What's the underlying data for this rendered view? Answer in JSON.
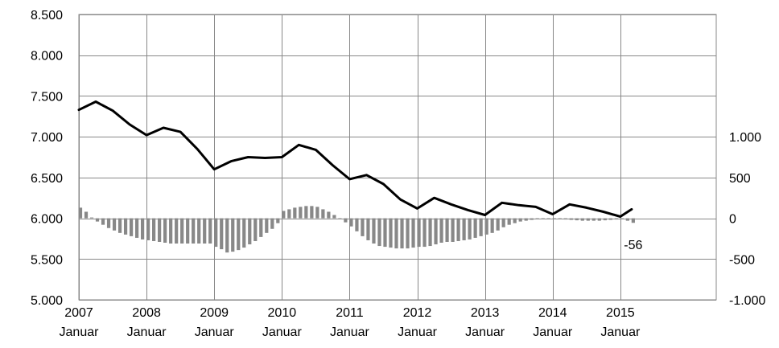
{
  "chart_data": {
    "type": "line",
    "title": "",
    "xlabel": "",
    "ylabel": "",
    "x_tick_labels": [
      {
        "year": "2007",
        "month": "Januar"
      },
      {
        "year": "2008",
        "month": "Januar"
      },
      {
        "year": "2009",
        "month": "Januar"
      },
      {
        "year": "2010",
        "month": "Januar"
      },
      {
        "year": "2011",
        "month": "Januar"
      },
      {
        "year": "2012",
        "month": "Januar"
      },
      {
        "year": "2013",
        "month": "Januar"
      },
      {
        "year": "2014",
        "month": "Januar"
      },
      {
        "year": "2015",
        "month": "Januar"
      }
    ],
    "x_start": "2007-01",
    "x_end": "2016-06",
    "left_axis": {
      "ylim": [
        5000,
        8500
      ],
      "tick_values": [
        5000,
        5500,
        6000,
        6500,
        7000,
        7500,
        8000,
        8500
      ],
      "tick_labels": [
        "5.000",
        "5.500",
        "6.000",
        "6.500",
        "7.000",
        "7.500",
        "8.000",
        "8.500"
      ]
    },
    "right_axis": {
      "ylim": [
        -1000,
        2500
      ],
      "tick_values": [
        -1000,
        -500,
        0,
        500,
        1000
      ],
      "tick_labels": [
        "-1.000",
        "-500",
        "0",
        "500",
        "1.000"
      ]
    },
    "grid": true,
    "line_color": "#000000",
    "bar_color": "#888888",
    "series": [
      {
        "type": "line",
        "axis": "left",
        "x": [
          "2007-01",
          "2007-04",
          "2007-07",
          "2007-10",
          "2008-01",
          "2008-04",
          "2008-07",
          "2008-10",
          "2009-01",
          "2009-04",
          "2009-07",
          "2009-10",
          "2010-01",
          "2010-04",
          "2010-07",
          "2010-10",
          "2011-01",
          "2011-04",
          "2011-07",
          "2011-10",
          "2012-01",
          "2012-04",
          "2012-07",
          "2012-10",
          "2013-01",
          "2013-04",
          "2013-07",
          "2013-10",
          "2014-01",
          "2014-04",
          "2014-07",
          "2014-10",
          "2015-01",
          "2015-03"
        ],
        "values": [
          7330,
          7430,
          7320,
          7150,
          7020,
          7110,
          7060,
          6850,
          6600,
          6700,
          6750,
          6740,
          6750,
          6900,
          6840,
          6650,
          6480,
          6530,
          6420,
          6230,
          6120,
          6250,
          6170,
          6100,
          6040,
          6190,
          6160,
          6140,
          6050,
          6170,
          6130,
          6080,
          6020,
          6110
        ]
      },
      {
        "type": "bar",
        "axis": "right",
        "x": [
          "2007-01",
          "2007-02",
          "2007-03",
          "2007-04",
          "2007-05",
          "2007-06",
          "2007-07",
          "2007-08",
          "2007-09",
          "2007-10",
          "2007-11",
          "2007-12",
          "2008-01",
          "2008-02",
          "2008-03",
          "2008-04",
          "2008-05",
          "2008-06",
          "2008-07",
          "2008-08",
          "2008-09",
          "2008-10",
          "2008-11",
          "2008-12",
          "2009-01",
          "2009-02",
          "2009-03",
          "2009-04",
          "2009-05",
          "2009-06",
          "2009-07",
          "2009-08",
          "2009-09",
          "2009-10",
          "2009-11",
          "2009-12",
          "2010-01",
          "2010-02",
          "2010-03",
          "2010-04",
          "2010-05",
          "2010-06",
          "2010-07",
          "2010-08",
          "2010-09",
          "2010-10",
          "2010-11",
          "2010-12",
          "2011-01",
          "2011-02",
          "2011-03",
          "2011-04",
          "2011-05",
          "2011-06",
          "2011-07",
          "2011-08",
          "2011-09",
          "2011-10",
          "2011-11",
          "2011-12",
          "2012-01",
          "2012-02",
          "2012-03",
          "2012-04",
          "2012-05",
          "2012-06",
          "2012-07",
          "2012-08",
          "2012-09",
          "2012-10",
          "2012-11",
          "2012-12",
          "2013-01",
          "2013-02",
          "2013-03",
          "2013-04",
          "2013-05",
          "2013-06",
          "2013-07",
          "2013-08",
          "2013-09",
          "2013-10",
          "2013-11",
          "2013-12",
          "2014-01",
          "2014-02",
          "2014-03",
          "2014-04",
          "2014-05",
          "2014-06",
          "2014-07",
          "2014-08",
          "2014-09",
          "2014-10",
          "2014-11",
          "2014-12",
          "2015-01",
          "2015-02",
          "2015-03"
        ],
        "values": [
          130,
          80,
          10,
          -40,
          -80,
          -120,
          -150,
          -180,
          -200,
          -220,
          -240,
          -260,
          -270,
          -280,
          -290,
          -300,
          -310,
          -310,
          -310,
          -310,
          -310,
          -310,
          -310,
          -310,
          -350,
          -380,
          -420,
          -410,
          -390,
          -360,
          -320,
          -280,
          -230,
          -180,
          -130,
          -60,
          90,
          110,
          130,
          140,
          150,
          150,
          140,
          110,
          80,
          40,
          0,
          -50,
          -100,
          -160,
          -220,
          -270,
          -310,
          -340,
          -350,
          -360,
          -370,
          -370,
          -370,
          -360,
          -350,
          -350,
          -340,
          -320,
          -300,
          -290,
          -290,
          -280,
          -270,
          -260,
          -240,
          -220,
          -200,
          -180,
          -150,
          -110,
          -80,
          -60,
          -40,
          -30,
          -20,
          -10,
          -5,
          0,
          0,
          -10,
          -15,
          -20,
          -25,
          -30,
          -30,
          -30,
          -30,
          -25,
          -20,
          -15,
          -10,
          -30,
          -56
        ]
      }
    ],
    "annotations": [
      {
        "text": "-56",
        "x": "2015-03",
        "y": -320,
        "axis": "right"
      }
    ]
  }
}
